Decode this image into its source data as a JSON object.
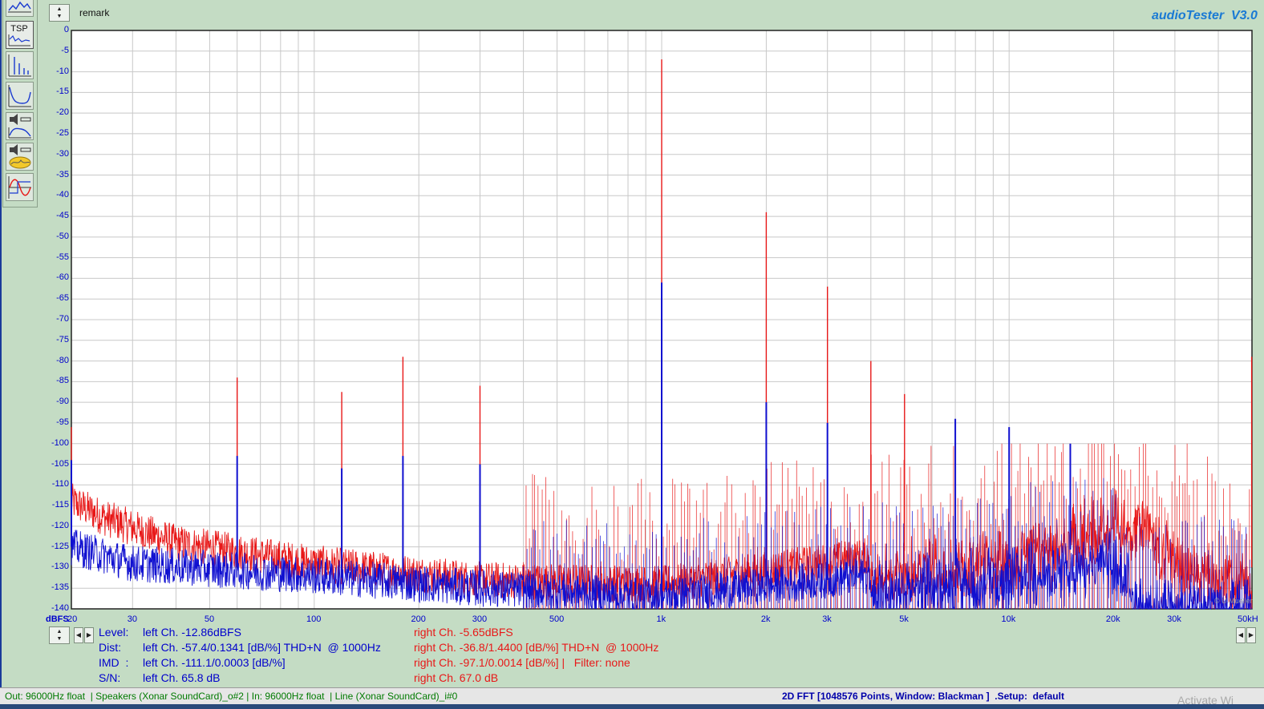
{
  "header": {
    "remark_label": "remark",
    "app_title": "audioTester  V3.0"
  },
  "toolbar": {
    "buttons": [
      {
        "icon": "spectrum-icon"
      },
      {
        "icon": "tsp-icon",
        "label": "TSP"
      },
      {
        "icon": "fft-icon"
      },
      {
        "icon": "frequency-response-icon"
      },
      {
        "icon": "speaker-response-icon"
      },
      {
        "icon": "speaker-impedance-icon"
      },
      {
        "icon": "oscilloscope-icon"
      }
    ]
  },
  "chart_data": {
    "type": "line",
    "title": "",
    "xlabel": "",
    "ylabel": "dBFS",
    "x_scale": "log",
    "xlim": [
      20,
      50000
    ],
    "ylim": [
      -140,
      0
    ],
    "y_ticks": [
      "0",
      "-5",
      "-10",
      "-15",
      "-20",
      "-25",
      "-30",
      "-35",
      "-40",
      "-45",
      "-50",
      "-55",
      "-60",
      "-65",
      "-70",
      "-75",
      "-80",
      "-85",
      "-90",
      "-95",
      "-100",
      "-105",
      "-110",
      "-115",
      "-120",
      "-125",
      "-130",
      "-135",
      "-140"
    ],
    "x_ticks": [
      {
        "value": 20,
        "label": "20"
      },
      {
        "value": 30,
        "label": "30"
      },
      {
        "value": 50,
        "label": "50"
      },
      {
        "value": 100,
        "label": "100"
      },
      {
        "value": 200,
        "label": "200"
      },
      {
        "value": 300,
        "label": "300"
      },
      {
        "value": 500,
        "label": "500"
      },
      {
        "value": 1000,
        "label": "1k"
      },
      {
        "value": 2000,
        "label": "2k"
      },
      {
        "value": 3000,
        "label": "3k"
      },
      {
        "value": 5000,
        "label": "5k"
      },
      {
        "value": 10000,
        "label": "10k"
      },
      {
        "value": 20000,
        "label": "20k"
      },
      {
        "value": 30000,
        "label": "30k"
      },
      {
        "value": 50000,
        "label": "50kH"
      }
    ],
    "grid": true,
    "series": [
      {
        "channel": "right",
        "color": "#e81818",
        "noise_floor": [
          [
            20,
            -114
          ],
          [
            25,
            -118
          ],
          [
            40,
            -124
          ],
          [
            100,
            -129
          ],
          [
            300,
            -133
          ],
          [
            1000,
            -134
          ],
          [
            5000,
            -126
          ],
          [
            10000,
            -124
          ],
          [
            20000,
            -115
          ],
          [
            25000,
            -116
          ],
          [
            30000,
            -124
          ],
          [
            50000,
            -130
          ]
        ],
        "peaks": [
          [
            20,
            -96
          ],
          [
            60,
            -84
          ],
          [
            120,
            -87.5
          ],
          [
            180,
            -79
          ],
          [
            300,
            -86
          ],
          [
            1000,
            -7
          ],
          [
            2000,
            -44
          ],
          [
            3000,
            -62
          ],
          [
            4000,
            -80
          ],
          [
            5000,
            -88
          ],
          [
            60000,
            -79
          ]
        ]
      },
      {
        "channel": "left",
        "color": "#1010d0",
        "noise_floor": [
          [
            20,
            -125
          ],
          [
            30,
            -129
          ],
          [
            100,
            -132
          ],
          [
            300,
            -135
          ],
          [
            1000,
            -137
          ],
          [
            3000,
            -133
          ],
          [
            10000,
            -128
          ],
          [
            20000,
            -124
          ],
          [
            24000,
            -136
          ],
          [
            50000,
            -135
          ]
        ],
        "peaks": [
          [
            20,
            -104
          ],
          [
            60,
            -103
          ],
          [
            120,
            -106
          ],
          [
            180,
            -103
          ],
          [
            300,
            -105
          ],
          [
            1000,
            -61
          ],
          [
            2000,
            -90
          ],
          [
            3000,
            -95
          ],
          [
            7000,
            -94
          ],
          [
            10000,
            -96
          ],
          [
            15000,
            -100
          ]
        ]
      }
    ]
  },
  "readings": {
    "level": {
      "label": "Level:",
      "left": "left Ch. -12.86dBFS",
      "right": "right Ch. -5.65dBFS"
    },
    "dist": {
      "label": "Dist:",
      "left": "left Ch. -57.4/0.1341 [dB/%] THD+N  @ 1000Hz",
      "right": "right Ch. -36.8/1.4400 [dB/%] THD+N  @ 1000Hz"
    },
    "imd": {
      "label": "IMD  :",
      "left": "left Ch. -111.1/0.0003 [dB/%]",
      "right": "right Ch. -97.1/0.0014 [dB/%] |   Filter: none"
    },
    "sn": {
      "label": "S/N:",
      "left": "left Ch. 65.8 dB",
      "right": "right Ch. 67.0 dB"
    }
  },
  "statusbar": {
    "left": "Out: 96000Hz float  | Speakers (Xonar SoundCard)_o#2 | In: 96000Hz float  | Line (Xonar SoundCard)_i#0",
    "right": "2D FFT [1048576 Points, Window: Blackman ]  .Setup:  default"
  },
  "copyright": "© U.Mueller",
  "watermark": "Activate Wi"
}
